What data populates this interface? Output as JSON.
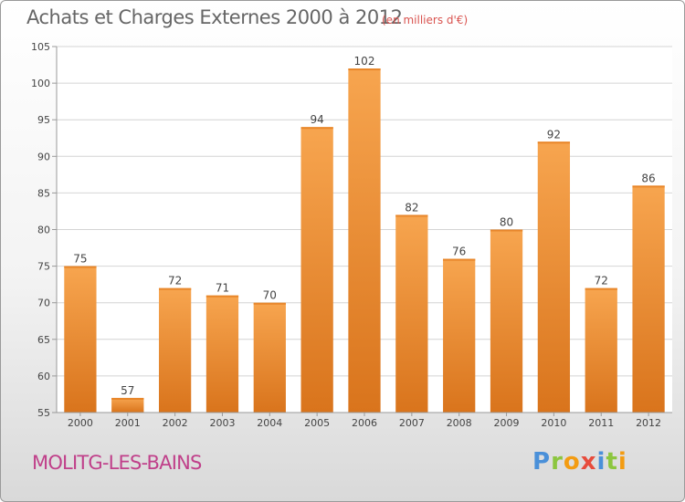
{
  "header": {
    "title": "Achats et Charges Externes 2000 à 2012",
    "subtitle": "(en milliers d'€)"
  },
  "footer": {
    "town": "MOLITG-LES-BAINS",
    "logo_letters": [
      "P",
      "r",
      "o",
      "x",
      "i",
      "t",
      "i"
    ],
    "logo_colors": [
      "#4a90d9",
      "#8cc63f",
      "#f39c12",
      "#e74c3c",
      "#4a90d9",
      "#8cc63f",
      "#f39c12"
    ]
  },
  "chart_data": {
    "type": "bar",
    "categories": [
      "2000",
      "2001",
      "2002",
      "2003",
      "2004",
      "2005",
      "2006",
      "2007",
      "2008",
      "2009",
      "2010",
      "2011",
      "2012"
    ],
    "values": [
      75,
      57,
      72,
      71,
      70,
      94,
      102,
      82,
      76,
      80,
      92,
      72,
      86
    ],
    "data_labels": [
      "75",
      "57",
      "72",
      "71",
      "70",
      "94",
      "102",
      "82",
      "76",
      "80",
      "92",
      "72",
      "86"
    ],
    "title": "Achats et Charges Externes 2000 à 2012",
    "subtitle": "(en milliers d'€)",
    "ylim": [
      55,
      105
    ],
    "yticks": [
      55,
      60,
      65,
      70,
      75,
      80,
      85,
      90,
      95,
      100,
      105
    ],
    "grid": true,
    "bar_color_top": "#f7a54f",
    "bar_color_bottom": "#d9741c"
  }
}
